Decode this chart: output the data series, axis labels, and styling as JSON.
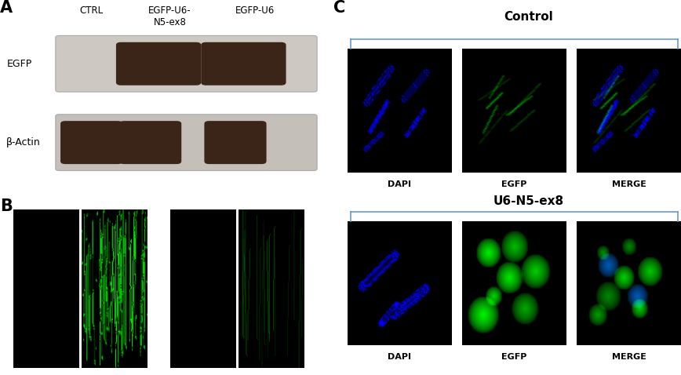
{
  "figure_width": 8.68,
  "figure_height": 4.78,
  "dpi": 100,
  "bg_color": "#ffffff",
  "panel_A": {
    "label": "A",
    "col_labels": [
      "CTRL",
      "EGFP-U6-\nN5-ex8",
      "EGFP-U6"
    ],
    "row_labels": [
      "EGFP",
      "β-Actin"
    ],
    "blot1_bg": "#cdc9c2",
    "blot2_bg": "#c4bfb8",
    "band1_color": "#3a2518",
    "band2_color": "#3a2518"
  },
  "panel_B": {
    "label": "B"
  },
  "panel_C": {
    "label": "C",
    "control_label": "Control",
    "u6_label": "U6-N5-ex8",
    "row_labels_top": [
      "DAPI",
      "EGFP",
      "MERGE"
    ],
    "row_labels_bot": [
      "DAPI",
      "EGFP",
      "MERGE"
    ],
    "bracket_color": "#6699cc"
  }
}
